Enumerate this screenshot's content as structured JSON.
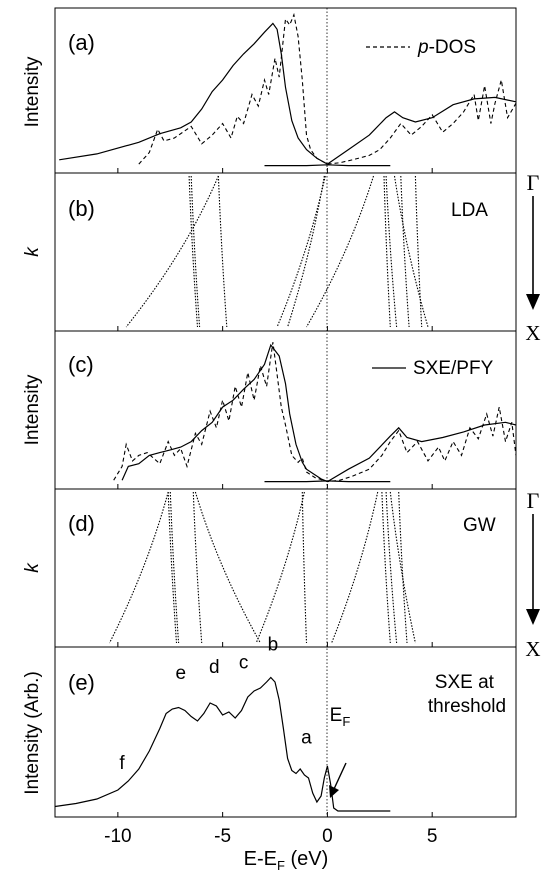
{
  "chart_data": [
    {
      "panel": "(a)",
      "type": "line",
      "ylabel": "Intensity",
      "legend": "p-DOS",
      "legend_placement": "top-right",
      "xlim": [
        -13,
        9
      ],
      "series": [
        {
          "name": "",
          "style": "solid",
          "x": [
            -12.8,
            -11,
            -9,
            -8,
            -7,
            -6.5,
            -6,
            -5.5,
            -5,
            -4.5,
            -4,
            -3.5,
            -3,
            -2.8,
            -2.6,
            -2.4,
            -2.2,
            -2,
            -1.7,
            -1.4,
            -1,
            -0.5,
            0
          ],
          "y": [
            0.05,
            0.09,
            0.17,
            0.23,
            0.27,
            0.31,
            0.4,
            0.52,
            0.6,
            0.7,
            0.78,
            0.85,
            0.93,
            0.96,
            0.99,
            0.95,
            0.78,
            0.55,
            0.32,
            0.2,
            0.12,
            0.06,
            0.02
          ]
        },
        {
          "name": "",
          "style": "solid",
          "x": [
            0,
            1,
            2,
            2.8,
            3.2,
            3.6,
            4.2,
            5,
            6,
            7,
            8,
            9
          ],
          "y": [
            0.02,
            0.12,
            0.22,
            0.34,
            0.38,
            0.34,
            0.31,
            0.34,
            0.43,
            0.47,
            0.48,
            0.45
          ]
        },
        {
          "name": "p-DOS",
          "style": "dashed",
          "x": [
            -9,
            -8.5,
            -8.1,
            -7.8,
            -7.3,
            -6.5,
            -6,
            -5.5,
            -5,
            -4.6,
            -4.3,
            -4,
            -3.6,
            -3.3,
            -3,
            -2.8,
            -2.5,
            -2.3,
            -2,
            -1.8,
            -1.6,
            -1.4,
            -1.2,
            -1,
            -0.8,
            -0.5,
            0,
            0.6,
            1.2,
            2,
            2.5,
            3,
            3.5,
            4,
            4.5,
            5,
            5.5,
            6,
            6.5,
            7,
            7.2,
            7.5,
            7.8,
            8,
            8.3,
            8.6,
            9
          ],
          "y": [
            0.02,
            0.1,
            0.26,
            0.18,
            0.2,
            0.28,
            0.16,
            0.22,
            0.3,
            0.2,
            0.35,
            0.3,
            0.5,
            0.42,
            0.6,
            0.5,
            0.75,
            0.62,
            1.02,
            0.98,
            1.05,
            0.9,
            0.6,
            0.22,
            0.12,
            0.06,
            0.02,
            0.03,
            0.05,
            0.08,
            0.12,
            0.2,
            0.3,
            0.22,
            0.28,
            0.36,
            0.24,
            0.3,
            0.38,
            0.5,
            0.32,
            0.56,
            0.3,
            0.44,
            0.6,
            0.34,
            0.44
          ]
        },
        {
          "name": "",
          "style": "solid",
          "x": [
            -3,
            -1,
            0,
            1,
            3
          ],
          "y": [
            0.01,
            0.01,
            0.015,
            0.01,
            0.01
          ]
        }
      ]
    },
    {
      "panel": "(b)",
      "type": "line",
      "ylabel": "k",
      "method": "LDA",
      "k_top": "Γ",
      "k_bottom": "X",
      "xlim": [
        -13,
        9
      ],
      "bands": [
        {
          "x0": -6.6,
          "x1": -6.2
        },
        {
          "x0": -6.5,
          "x1": -6.1
        },
        {
          "x0": -5.2,
          "x1": -9.6
        },
        {
          "x0": -5.2,
          "x1": -4.8
        },
        {
          "x0": -0.1,
          "x1": -2.4
        },
        {
          "x0": -0.15,
          "x1": -1.9
        },
        {
          "x0": 2.7,
          "x1": 3.0
        },
        {
          "x0": 2.8,
          "x1": 3.3
        },
        {
          "x0": 3.2,
          "x1": 4.8
        },
        {
          "x0": 3.5,
          "x1": 3.9
        },
        {
          "x0": 4.2,
          "x1": 4.5
        },
        {
          "x0": 2.2,
          "x1": -1.0
        }
      ]
    },
    {
      "panel": "(c)",
      "type": "line",
      "ylabel": "Intensity",
      "legend": "SXE/PFY",
      "legend_placement": "top-right",
      "xlim": [
        -13,
        9
      ],
      "series": [
        {
          "name": "",
          "style": "solid",
          "x": [
            -9.8,
            -9.5,
            -9,
            -8.5,
            -8,
            -7.5,
            -7,
            -6.5,
            -6,
            -5.5,
            -5,
            -4.5,
            -4,
            -3.5,
            -3,
            -2.7,
            -2.5,
            -2.3,
            -2,
            -1.8,
            -1.5,
            -1.2,
            -1,
            -0.6,
            -0.3,
            0
          ],
          "y": [
            0.02,
            0.12,
            0.14,
            0.2,
            0.22,
            0.24,
            0.26,
            0.3,
            0.38,
            0.44,
            0.55,
            0.6,
            0.68,
            0.75,
            0.86,
            1.0,
            0.96,
            0.92,
            0.72,
            0.5,
            0.28,
            0.15,
            0.1,
            0.06,
            0.03,
            0.01
          ]
        },
        {
          "name": "",
          "style": "solid",
          "x": [
            0,
            1,
            2,
            3,
            3.4,
            3.8,
            4.5,
            5.5,
            6.5,
            7.5,
            8.5,
            9
          ],
          "y": [
            0.01,
            0.1,
            0.18,
            0.34,
            0.4,
            0.33,
            0.3,
            0.33,
            0.37,
            0.42,
            0.44,
            0.42
          ]
        },
        {
          "name": "SXE/PFY",
          "style": "dashed",
          "x": [
            -10.2,
            -9.8,
            -9.6,
            -9.3,
            -9,
            -8.6,
            -8,
            -7.6,
            -7.3,
            -7,
            -6.7,
            -6.3,
            -6,
            -5.6,
            -5.3,
            -5,
            -4.7,
            -4.4,
            -4.1,
            -3.8,
            -3.5,
            -3.2,
            -2.9,
            -2.6,
            -2.2,
            -2,
            -1.7,
            -1.4,
            -1.2,
            -1,
            -0.6,
            0,
            0.6,
            1.2,
            2,
            2.6,
            3,
            3.4,
            3.8,
            4.3,
            4.8,
            5.3,
            5.6,
            6,
            6.4,
            6.8,
            7.2,
            7.6,
            7.9,
            8.2,
            8.5,
            8.8,
            9
          ],
          "y": [
            0.02,
            0.12,
            0.28,
            0.16,
            0.2,
            0.22,
            0.14,
            0.3,
            0.2,
            0.25,
            0.12,
            0.36,
            0.28,
            0.52,
            0.4,
            0.6,
            0.45,
            0.7,
            0.55,
            0.8,
            0.6,
            0.85,
            0.7,
            1.02,
            0.55,
            0.42,
            0.2,
            0.15,
            0.18,
            0.08,
            0.04,
            0.01,
            0.02,
            0.05,
            0.1,
            0.2,
            0.3,
            0.38,
            0.22,
            0.3,
            0.16,
            0.26,
            0.16,
            0.3,
            0.2,
            0.4,
            0.32,
            0.5,
            0.34,
            0.55,
            0.3,
            0.44,
            0.2
          ]
        },
        {
          "name": "",
          "style": "solid",
          "x": [
            -3,
            -1,
            0,
            1,
            3
          ],
          "y": [
            0.01,
            0.01,
            0.015,
            0.01,
            0.01
          ]
        }
      ]
    },
    {
      "panel": "(d)",
      "type": "line",
      "ylabel": "k",
      "method": "GW",
      "k_top": "Γ",
      "k_bottom": "X",
      "xlim": [
        -13,
        9
      ],
      "bands": [
        {
          "x0": -7.6,
          "x1": -10.4
        },
        {
          "x0": -7.6,
          "x1": -7.2
        },
        {
          "x0": -7.5,
          "x1": -7.1
        },
        {
          "x0": -6.4,
          "x1": -6.0
        },
        {
          "x0": -6.3,
          "x1": -3.2
        },
        {
          "x0": -1.1,
          "x1": -3.4
        },
        {
          "x0": -1.2,
          "x1": -1.0
        },
        {
          "x0": 2.6,
          "x1": 3.0
        },
        {
          "x0": 2.8,
          "x1": 3.3
        },
        {
          "x0": 3.0,
          "x1": 4.2
        },
        {
          "x0": 3.4,
          "x1": 3.8
        },
        {
          "x0": 2.4,
          "x1": 0.2
        }
      ]
    },
    {
      "panel": "(e)",
      "type": "line",
      "ylabel": "Intensity (Arb.)",
      "title": "SXE at threshold",
      "xlabel": "E-E",
      "xlabel_sub": "F",
      "xlabel_unit": "(eV)",
      "xlim": [
        -13,
        9
      ],
      "xticks": [
        -10,
        -5,
        0,
        5
      ],
      "tick_labels": [
        "-10",
        "-5",
        "0",
        "5"
      ],
      "annotations": [
        {
          "text": "f",
          "x": -9.8,
          "y": 0.28
        },
        {
          "text": "e",
          "x": -7.0,
          "y": 0.88
        },
        {
          "text": "d",
          "x": -5.4,
          "y": 0.92
        },
        {
          "text": "c",
          "x": -4.0,
          "y": 0.95
        },
        {
          "text": "b",
          "x": -2.6,
          "y": 1.07
        },
        {
          "text": "a",
          "x": -1.0,
          "y": 0.45
        },
        {
          "text": "E",
          "sub": "F",
          "x": 0.6,
          "y": 0.6
        }
      ],
      "series": [
        {
          "name": "",
          "style": "solid",
          "x": [
            -13,
            -12,
            -11,
            -10,
            -9.5,
            -9,
            -8.5,
            -8,
            -7.7,
            -7.4,
            -7.1,
            -6.8,
            -6.5,
            -6.2,
            -5.9,
            -5.6,
            -5.3,
            -5,
            -4.7,
            -4.4,
            -4.1,
            -3.8,
            -3.5,
            -3.2,
            -2.9,
            -2.7,
            -2.5,
            -2.3,
            -2.1,
            -1.9,
            -1.7,
            -1.5,
            -1.3,
            -1.1,
            -0.9,
            -0.7,
            -0.5,
            -0.3,
            -0.15,
            0,
            0.15,
            0.3,
            0.5,
            1,
            2,
            3
          ],
          "y": [
            0.03,
            0.05,
            0.08,
            0.14,
            0.2,
            0.28,
            0.4,
            0.55,
            0.65,
            0.68,
            0.69,
            0.67,
            0.63,
            0.6,
            0.65,
            0.72,
            0.7,
            0.64,
            0.66,
            0.62,
            0.67,
            0.76,
            0.8,
            0.82,
            0.86,
            0.89,
            0.86,
            0.74,
            0.55,
            0.35,
            0.27,
            0.25,
            0.28,
            0.24,
            0.22,
            0.12,
            0.06,
            0.1,
            0.22,
            0.3,
            0.18,
            0.02,
            0.0,
            0.0,
            0.0,
            0.0
          ]
        }
      ]
    }
  ]
}
